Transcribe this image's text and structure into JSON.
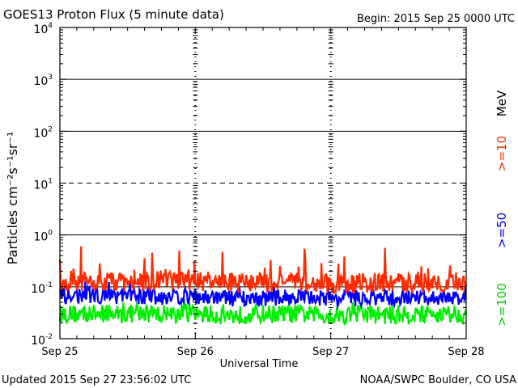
{
  "header": {
    "title": "GOES13 Proton Flux (5 minute data)",
    "begin": "Begin: 2015 Sep 25 0000 UTC"
  },
  "footer": {
    "updated": "Updated 2015 Sep 27 23:56:02 UTC",
    "credit": "NOAA/SWPC Boulder, CO USA"
  },
  "chart_data": {
    "type": "line",
    "title": "GOES13 Proton Flux (5 minute data)",
    "xlabel": "Universal Time",
    "ylabel": "Particles cm⁻²s⁻¹sr⁻¹",
    "yscale": "log",
    "ylim": [
      0.01,
      10000
    ],
    "xlim": [
      0,
      3
    ],
    "x_unit": "days since 2015 Sep 25 0000 UTC",
    "x_ticks": [
      {
        "value": 0,
        "label": "Sep 25"
      },
      {
        "value": 1,
        "label": "Sep 26"
      },
      {
        "value": 2,
        "label": "Sep 27"
      },
      {
        "value": 3,
        "label": "Sep 28"
      }
    ],
    "y_ticks": [
      {
        "value": 0.01,
        "base": "10",
        "exp": "-2"
      },
      {
        "value": 0.1,
        "base": "10",
        "exp": "-1"
      },
      {
        "value": 1,
        "base": "10",
        "exp": "0"
      },
      {
        "value": 10,
        "base": "10",
        "exp": "1"
      },
      {
        "value": 100,
        "base": "10",
        "exp": "2"
      },
      {
        "value": 1000,
        "base": "10",
        "exp": "3"
      },
      {
        "value": 10000,
        "base": "10",
        "exp": "4"
      }
    ],
    "threshold_line": {
      "value": 10,
      "style": "dashed"
    },
    "legend_unit": "MeV",
    "legend_placement": "right",
    "series": [
      {
        "name": ">=10",
        "color": "#ff2a00",
        "x": [
          0,
          0.25,
          0.5,
          0.75,
          1.0,
          1.25,
          1.5,
          1.75,
          2.0,
          2.25,
          2.5,
          2.75,
          3.0
        ],
        "y": [
          0.12,
          0.13,
          0.12,
          0.13,
          0.13,
          0.12,
          0.12,
          0.12,
          0.11,
          0.12,
          0.12,
          0.12,
          0.13
        ]
      },
      {
        "name": ">=50",
        "color": "#0000ff",
        "x": [
          0,
          0.25,
          0.5,
          0.75,
          1.0,
          1.25,
          1.5,
          1.75,
          2.0,
          2.25,
          2.5,
          2.75,
          3.0
        ],
        "y": [
          0.065,
          0.07,
          0.065,
          0.065,
          0.065,
          0.06,
          0.06,
          0.065,
          0.06,
          0.06,
          0.06,
          0.06,
          0.065
        ]
      },
      {
        "name": ">=100",
        "color": "#00ee00",
        "x": [
          0,
          0.25,
          0.5,
          0.75,
          1.0,
          1.25,
          1.5,
          1.75,
          2.0,
          2.25,
          2.5,
          2.75,
          3.0
        ],
        "y": [
          0.03,
          0.03,
          0.03,
          0.03,
          0.03,
          0.028,
          0.03,
          0.03,
          0.028,
          0.03,
          0.028,
          0.03,
          0.03
        ]
      }
    ]
  }
}
